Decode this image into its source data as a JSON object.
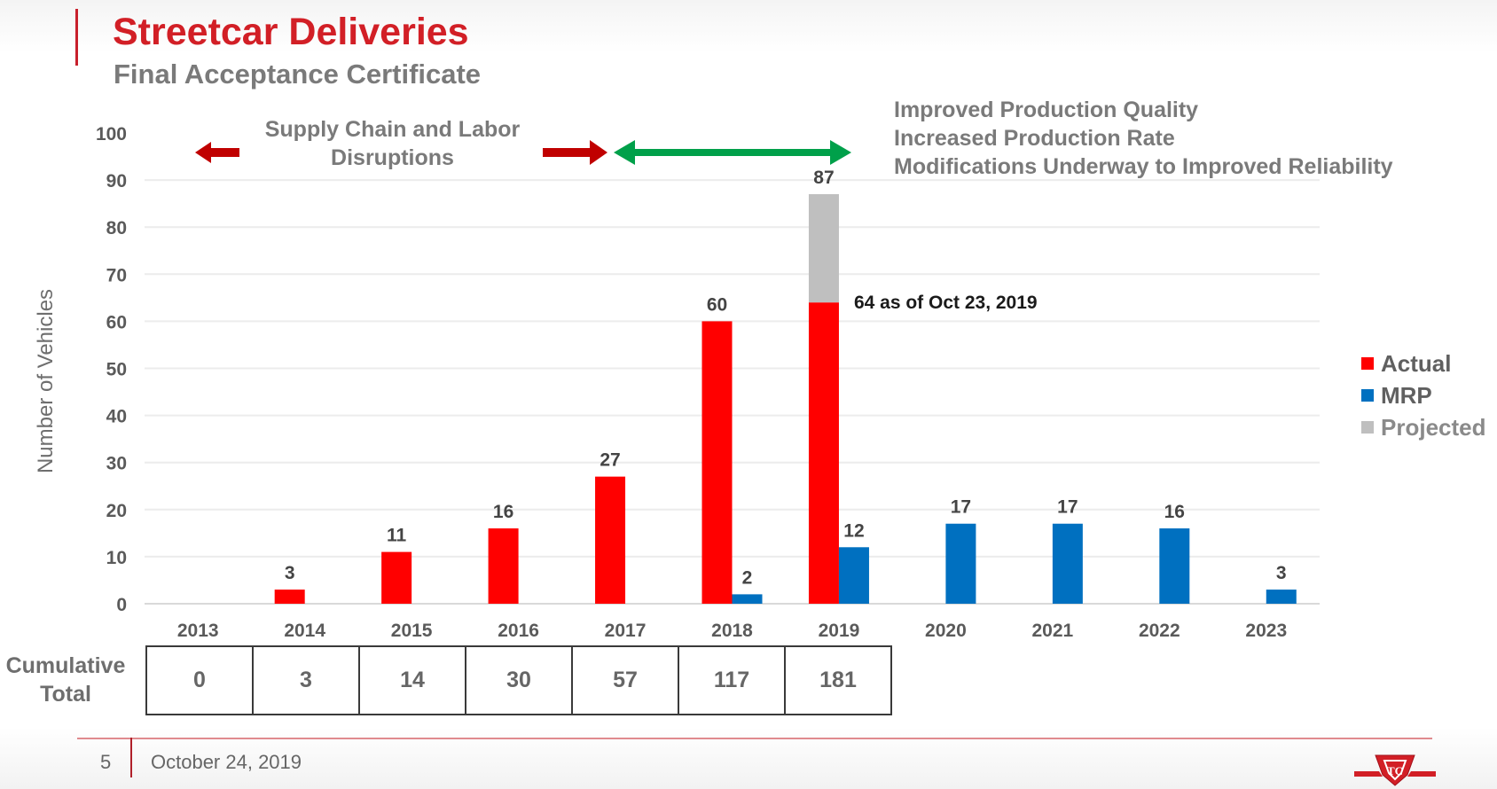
{
  "header": {
    "title": "Streetcar Deliveries",
    "subtitle": "Final Acceptance Certificate"
  },
  "annotations": {
    "left_note_lines": [
      "Supply Chain and Labor",
      "Disruptions"
    ],
    "right_note_lines": [
      "Improved Production Quality",
      "Increased Production Rate",
      "Modifications Underway to Improved Reliability"
    ],
    "stack_note": "64 as of Oct 23, 2019"
  },
  "colors": {
    "actual": "#ff0000",
    "mrp": "#0070c0",
    "projected": "#bfbfbf",
    "brand_red": "#d21f26",
    "arrow_red": "#c00000",
    "arrow_green": "#00a04a"
  },
  "chart_data": {
    "type": "bar",
    "title": "Streetcar Deliveries",
    "subtitle": "Final Acceptance Certificate",
    "xlabel": "",
    "ylabel": "Number of Vehicles",
    "ylim": [
      0,
      100
    ],
    "yticks": [
      0,
      10,
      20,
      30,
      40,
      50,
      60,
      70,
      80,
      90,
      100
    ],
    "grid": true,
    "legend_position": "right",
    "categories": [
      "2013",
      "2014",
      "2015",
      "2016",
      "2017",
      "2018",
      "2019",
      "2020",
      "2021",
      "2022",
      "2023"
    ],
    "series": [
      {
        "name": "Actual",
        "values": [
          0,
          3,
          11,
          16,
          27,
          60,
          64,
          null,
          null,
          null,
          null
        ],
        "labels": [
          "",
          "3",
          "11",
          "16",
          "27",
          "60",
          "",
          "",
          "",
          "",
          ""
        ]
      },
      {
        "name": "Projected",
        "stacked_on": "Actual",
        "values": [
          null,
          null,
          null,
          null,
          null,
          null,
          23,
          null,
          null,
          null,
          null
        ],
        "total_labels": [
          "",
          "",
          "",
          "",
          "",
          "",
          "87",
          "",
          "",
          "",
          ""
        ]
      },
      {
        "name": "MRP",
        "values": [
          null,
          null,
          null,
          null,
          null,
          2,
          12,
          17,
          17,
          16,
          3
        ],
        "labels": [
          "",
          "",
          "",
          "",
          "",
          "2",
          "12",
          "17",
          "17",
          "16",
          "3"
        ]
      }
    ],
    "legend": [
      "Actual",
      "MRP",
      "Projected"
    ],
    "cumulative_total": {
      "label_lines": [
        "Cumulative",
        "Total"
      ],
      "years": [
        "2013",
        "2014",
        "2015",
        "2016",
        "2017",
        "2018",
        "2019"
      ],
      "values": [
        "0",
        "3",
        "14",
        "30",
        "57",
        "117",
        "181"
      ]
    }
  },
  "footer": {
    "page_number": "5",
    "date": "October 24, 2019",
    "logo": "ttc-logo"
  }
}
